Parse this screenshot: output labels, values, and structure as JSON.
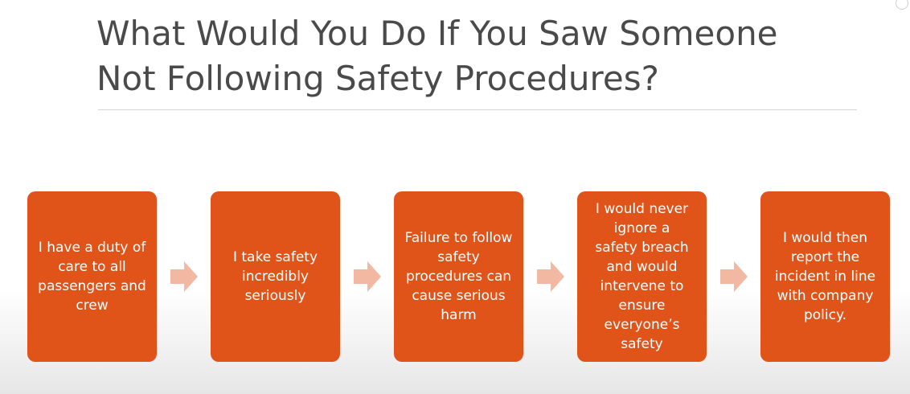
{
  "slide": {
    "title_lines": [
      "What Would You Do If You Saw Someone",
      "Not Following Safety Procedures?"
    ],
    "steps": [
      {
        "text": "I have a duty of care to all passengers and crew"
      },
      {
        "text": "I take safety incredibly seriously"
      },
      {
        "text": "Failure to follow safety procedures can cause serious harm"
      },
      {
        "text": "I would never ignore a safety breach and would intervene to ensure everyone’s safety"
      },
      {
        "text": "I would then report the incident in line with company policy."
      }
    ]
  },
  "colors": {
    "step_fill": "#e0541a",
    "arrow_fill": "#f2b8a2",
    "title_text": "#4a4a4a"
  },
  "icons": {
    "arrow": "arrow-right-icon"
  }
}
